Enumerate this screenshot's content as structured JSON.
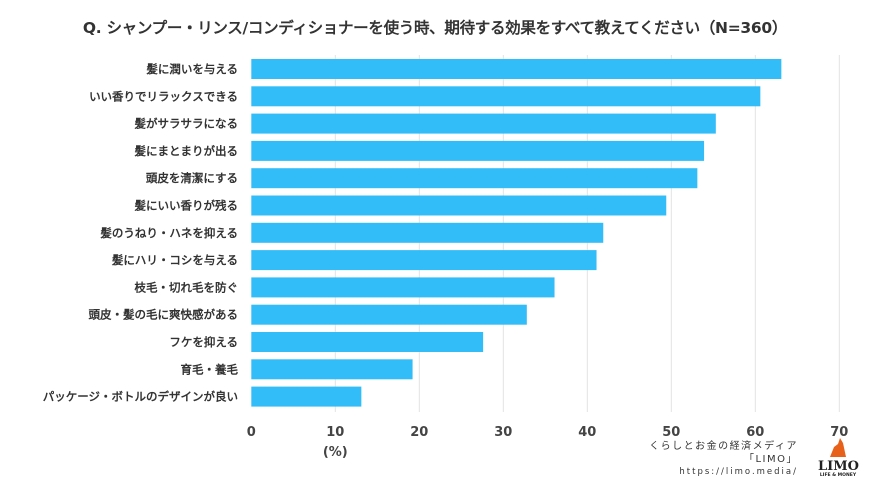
{
  "chart_data": {
    "type": "bar",
    "orientation": "horizontal",
    "title": "Q. シャンプー・リンス/コンディショナーを使う時、期待する効果をすべて教えてください（N=360）",
    "categories": [
      "髪に潤いを与える",
      "いい香りでリラックスできる",
      "髪がサラサラになる",
      "髪にまとまりが出る",
      "頭皮を清潔にする",
      "髪にいい香りが残る",
      "髪のうねり・ハネを抑える",
      "髪にハリ・コシを与える",
      "枝毛・切れ毛を防ぐ",
      "頭皮・髪の毛に爽快感がある",
      "フケを抑える",
      "育毛・養毛",
      "パッケージ・ボトルのデザインが良い"
    ],
    "values": [
      63.1,
      60.6,
      55.3,
      53.9,
      53.1,
      49.4,
      41.9,
      41.1,
      36.1,
      32.8,
      27.6,
      19.2,
      13.1
    ],
    "xlabel": "(%)",
    "xlim": [
      0,
      70
    ],
    "xticks": [
      "0",
      "10",
      "20",
      "30",
      "40",
      "50",
      "60",
      "70"
    ],
    "grid": true,
    "bar_color": "#33bdf8"
  },
  "credit": {
    "line1": "くらしとお金の経済メディア",
    "line2": "「LIMO」",
    "url": "https://limo.media/"
  },
  "logo": {
    "word": "LIMO",
    "sub": "LIFE & MONEY"
  }
}
